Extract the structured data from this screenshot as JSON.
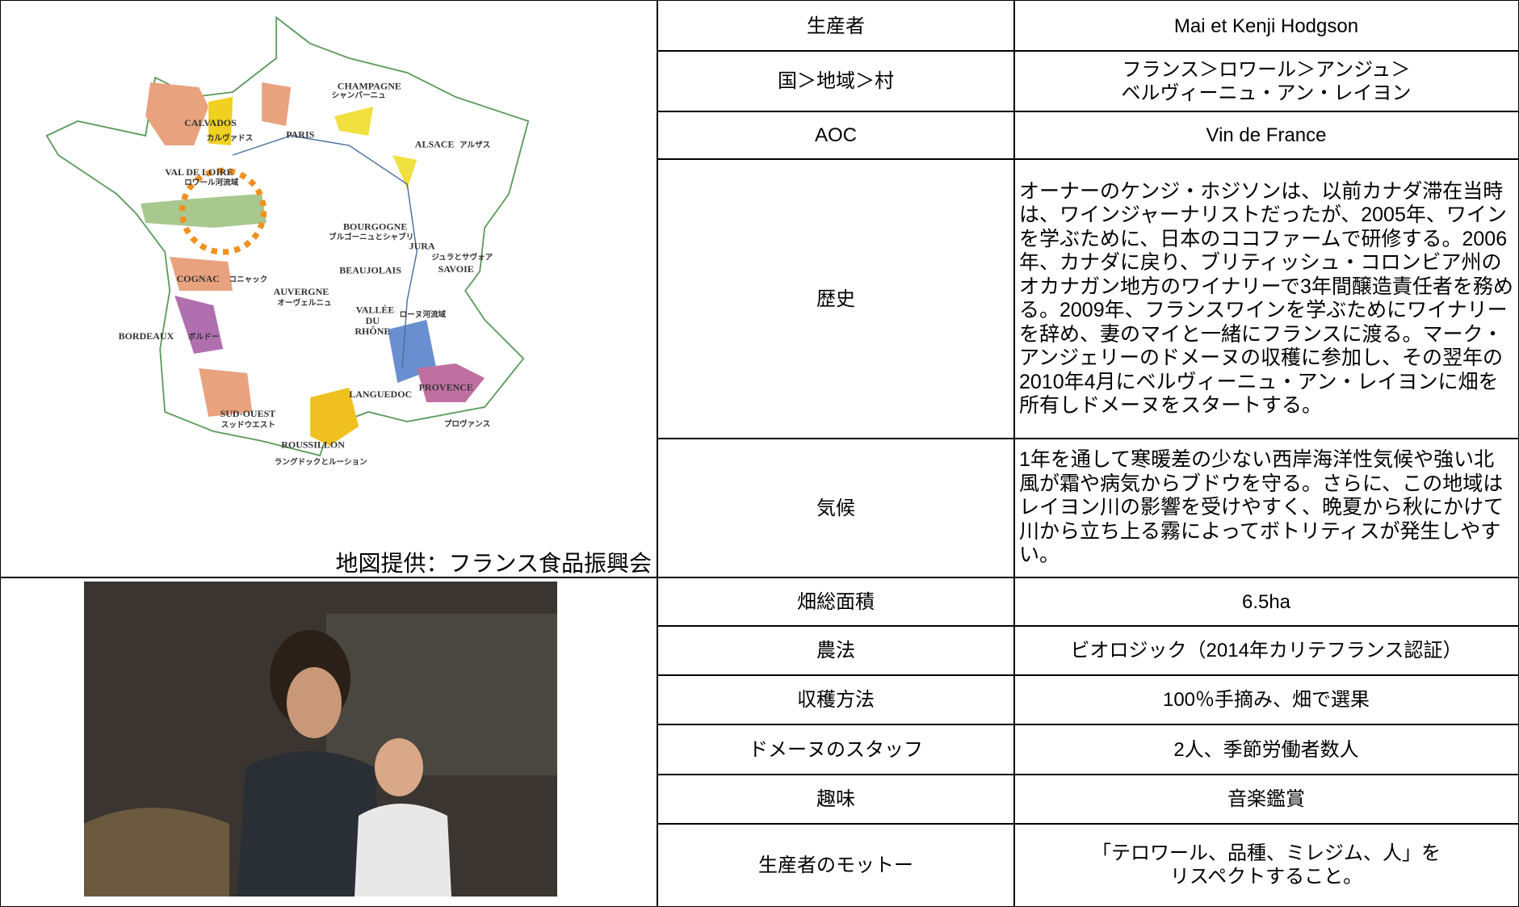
{
  "map": {
    "labels": [
      "CHAMPAGNE",
      "シャンパーニュ",
      "CALVADOS",
      "カルヴァドス",
      "PARIS",
      "ALSACE",
      "アルザス",
      "VAL DE LOIRE",
      "ロワール河流域",
      "BOURGOGNE",
      "ブルゴーニュとシャブリ",
      "JURA",
      "ジュラとサヴォア",
      "SAVOIE",
      "BEAUJOLAIS",
      "COGNAC",
      "コニャック",
      "AUVERGNE",
      "オーヴェルニュ",
      "VALLÉE",
      "DU",
      "RHÔNE",
      "ローヌ河流域",
      "BORDEAUX",
      "ボルドー",
      "LANGUEDOC",
      "PROVENCE",
      "プロヴァンス",
      "SUD-OUEST",
      "スッドウエスト",
      "ROUSSILLON",
      "ラングドックとルーション"
    ],
    "caption": "地図提供：フランス食品振興会"
  },
  "table": {
    "rows": [
      [
        "生産者",
        "Mai et Kenji Hodgson"
      ],
      [
        "国＞地域＞村",
        "フランス＞ロワール＞アンジュ＞\nベルヴィーニュ・アン・レイヨン"
      ],
      [
        "AOC",
        "Vin de France"
      ],
      [
        "歴史",
        "オーナーのケンジ・ホジソンは、以前カナダ滞在当時は、ワインジャーナリストだったが、2005年、ワインを学ぶために、日本のココファームで研修する。2006年、カナダに戻り、ブリティッシュ・コロンビア州のオカナガン地方のワイナリーで3年間醸造責任者を務める。2009年、フランスワインを学ぶためにワイナリーを辞め、妻のマイと一緒にフランスに渡る。マーク・アンジェリーのドメーヌの収穫に参加し、その翌年の2010年4月にベルヴィーニュ・アン・レイヨンに畑を所有しドメーヌをスタートする。"
      ],
      [
        "気候",
        "1年を通して寒暖差の少ない西岸海洋性気候や強い北風が霜や病気からブドウを守る。さらに、この地域はレイヨン川の影響を受けやすく、晩夏から秋にかけて川から立ち上る霧によってボトリティスが発生しやすい。"
      ],
      [
        "畑総面積",
        "6.5ha"
      ],
      [
        "農法",
        "ビオロジック（2014年カリテフランス認証）"
      ],
      [
        "収穫方法",
        "100％手摘み、畑で選果"
      ],
      [
        "ドメーヌのスタッフ",
        "2人、季節労働者数人"
      ],
      [
        "趣味",
        "音楽鑑賞"
      ],
      [
        "生産者のモットー",
        "「テロワール、品種、ミレジム、人」を\nリスペクトすること。"
      ]
    ]
  }
}
